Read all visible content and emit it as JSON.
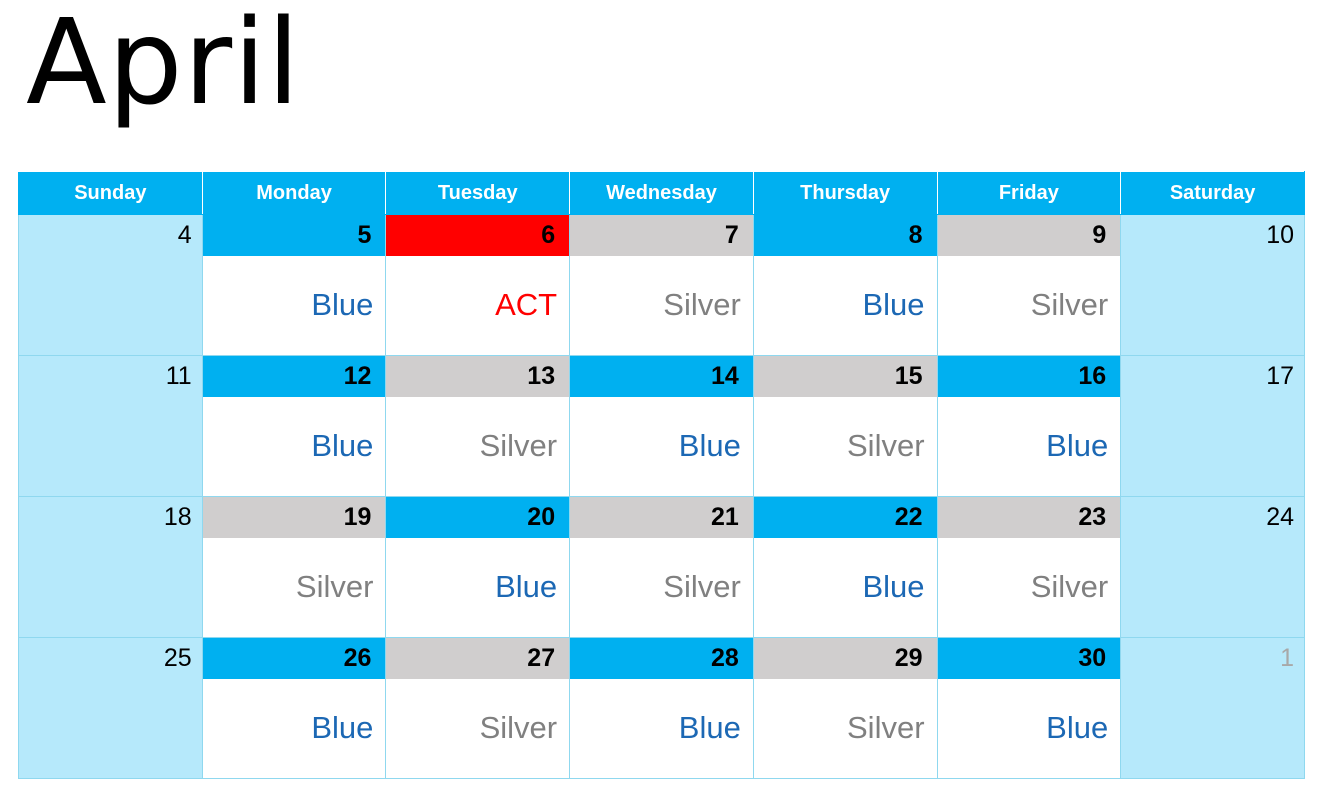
{
  "title": "April",
  "weekdays": [
    "Sunday",
    "Monday",
    "Tuesday",
    "Wednesday",
    "Thursday",
    "Friday",
    "Saturday"
  ],
  "colors": {
    "header": "#00b0f0",
    "weekend": "#b6e9fb",
    "blue_day": "#00b0f0",
    "silver_day": "#d0cece",
    "act_day": "#ff0000",
    "blue_text": "#1c68b4",
    "silver_text": "#808080",
    "act_text": "#ff0000"
  },
  "weeks": [
    {
      "sunday": "4",
      "days": [
        {
          "num": "5",
          "label": "Blue",
          "type": "blue"
        },
        {
          "num": "6",
          "label": "ACT",
          "type": "act"
        },
        {
          "num": "7",
          "label": "Silver",
          "type": "silver"
        },
        {
          "num": "8",
          "label": "Blue",
          "type": "blue"
        },
        {
          "num": "9",
          "label": "Silver",
          "type": "silver"
        }
      ],
      "saturday": "10"
    },
    {
      "sunday": "11",
      "days": [
        {
          "num": "12",
          "label": "Blue",
          "type": "blue"
        },
        {
          "num": "13",
          "label": "Silver",
          "type": "silver"
        },
        {
          "num": "14",
          "label": "Blue",
          "type": "blue"
        },
        {
          "num": "15",
          "label": "Silver",
          "type": "silver"
        },
        {
          "num": "16",
          "label": "Blue",
          "type": "blue"
        }
      ],
      "saturday": "17"
    },
    {
      "sunday": "18",
      "days": [
        {
          "num": "19",
          "label": "Silver",
          "type": "silver"
        },
        {
          "num": "20",
          "label": "Blue",
          "type": "blue"
        },
        {
          "num": "21",
          "label": "Silver",
          "type": "silver"
        },
        {
          "num": "22",
          "label": "Blue",
          "type": "blue"
        },
        {
          "num": "23",
          "label": "Silver",
          "type": "silver"
        }
      ],
      "saturday": "24"
    },
    {
      "sunday": "25",
      "days": [
        {
          "num": "26",
          "label": "Blue",
          "type": "blue"
        },
        {
          "num": "27",
          "label": "Silver",
          "type": "silver"
        },
        {
          "num": "28",
          "label": "Blue",
          "type": "blue"
        },
        {
          "num": "29",
          "label": "Silver",
          "type": "silver"
        },
        {
          "num": "30",
          "label": "Blue",
          "type": "blue"
        }
      ],
      "saturday": "1",
      "saturday_other_month": true
    }
  ]
}
